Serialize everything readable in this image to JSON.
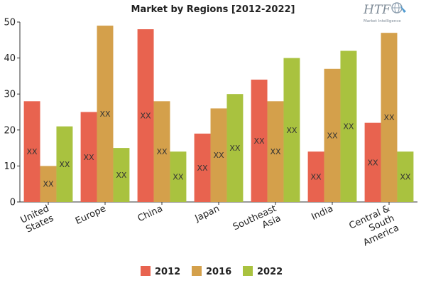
{
  "chart_data": {
    "type": "bar",
    "title": "Market by Regions [2012-2022]",
    "xlabel": "",
    "ylabel": "",
    "ylim": [
      0,
      50
    ],
    "yticks": [
      0,
      10,
      20,
      30,
      40,
      50
    ],
    "grid": false,
    "legend_position": "bottom",
    "categories": [
      [
        "United",
        "States"
      ],
      [
        "Europe"
      ],
      [
        "China"
      ],
      [
        "Japan"
      ],
      [
        "Southeast",
        "Asia"
      ],
      [
        "India"
      ],
      [
        "Central &",
        "South",
        "America"
      ]
    ],
    "series": [
      {
        "name": "2012",
        "color": "#e8634f",
        "values": [
          28,
          25,
          48,
          19,
          34,
          14,
          22
        ]
      },
      {
        "name": "2016",
        "color": "#d4a04b",
        "values": [
          10,
          49,
          28,
          26,
          28,
          37,
          47
        ]
      },
      {
        "name": "2022",
        "color": "#a9c23f",
        "values": [
          21,
          15,
          14,
          30,
          40,
          42,
          14
        ]
      }
    ],
    "data_label": "XX"
  },
  "logo": {
    "text": "HTF",
    "subtext": "Market Intelligence"
  }
}
